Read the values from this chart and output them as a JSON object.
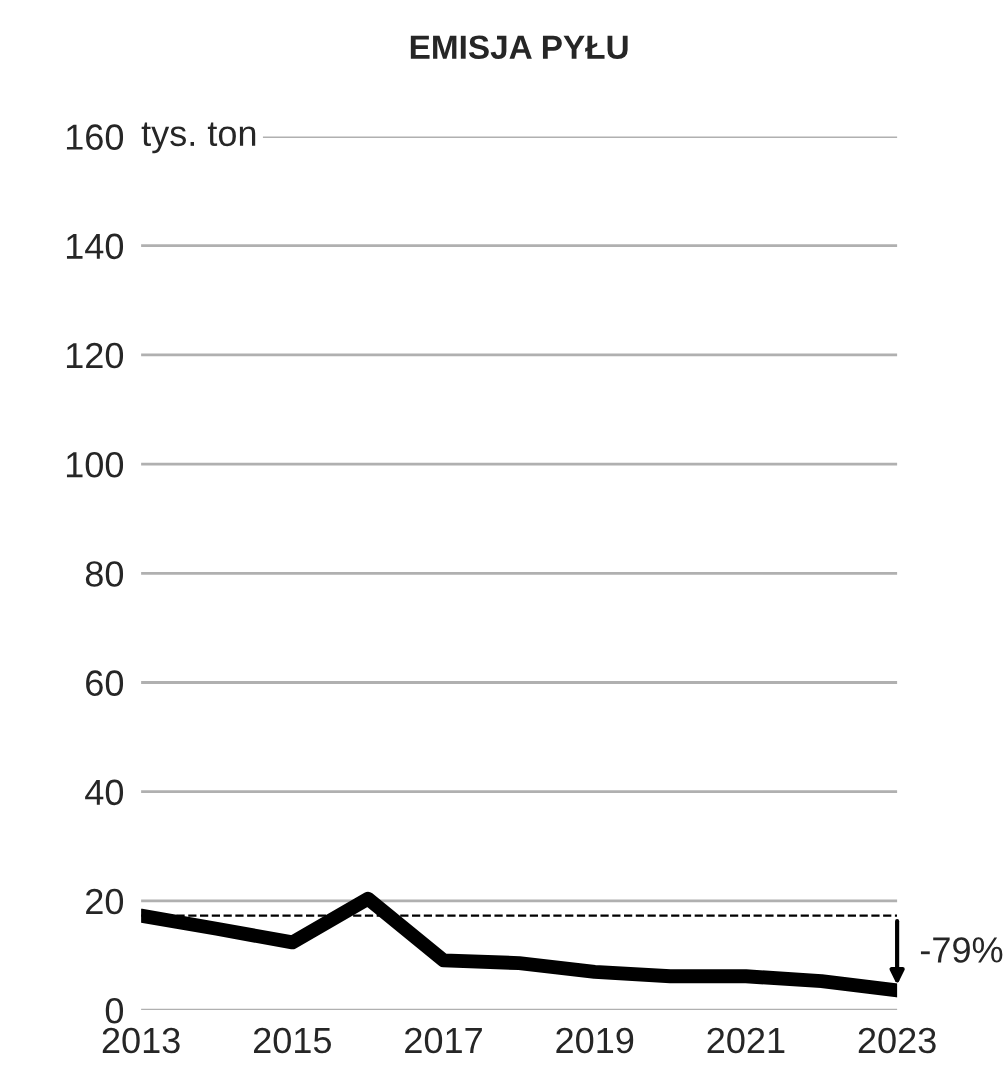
{
  "chart_data": {
    "type": "line",
    "title": "EMISJA PYŁU",
    "ylabel": "tys. ton",
    "x": [
      2013,
      2014,
      2015,
      2016,
      2017,
      2018,
      2019,
      2020,
      2021,
      2022,
      2023
    ],
    "series": [
      {
        "color": "#000000",
        "values": [
          17.3,
          14.9,
          12.4,
          20.4,
          9.1,
          8.6,
          7.0,
          6.2,
          6.2,
          5.3,
          3.6
        ]
      }
    ],
    "xlim": [
      2013,
      2023
    ],
    "xticks": [
      2013,
      2015,
      2017,
      2019,
      2021,
      2023
    ],
    "ylim": [
      0,
      160
    ],
    "yticks": [
      0,
      20,
      40,
      60,
      80,
      100,
      120,
      140,
      160
    ],
    "grid": "y",
    "legend": false,
    "marker": "none",
    "line_style": "solid",
    "ref_lines": [
      {
        "axis": "y",
        "value": 17.3,
        "color": "#000000",
        "line_style": "dashed"
      }
    ],
    "annotations": [
      "-79%"
    ]
  }
}
